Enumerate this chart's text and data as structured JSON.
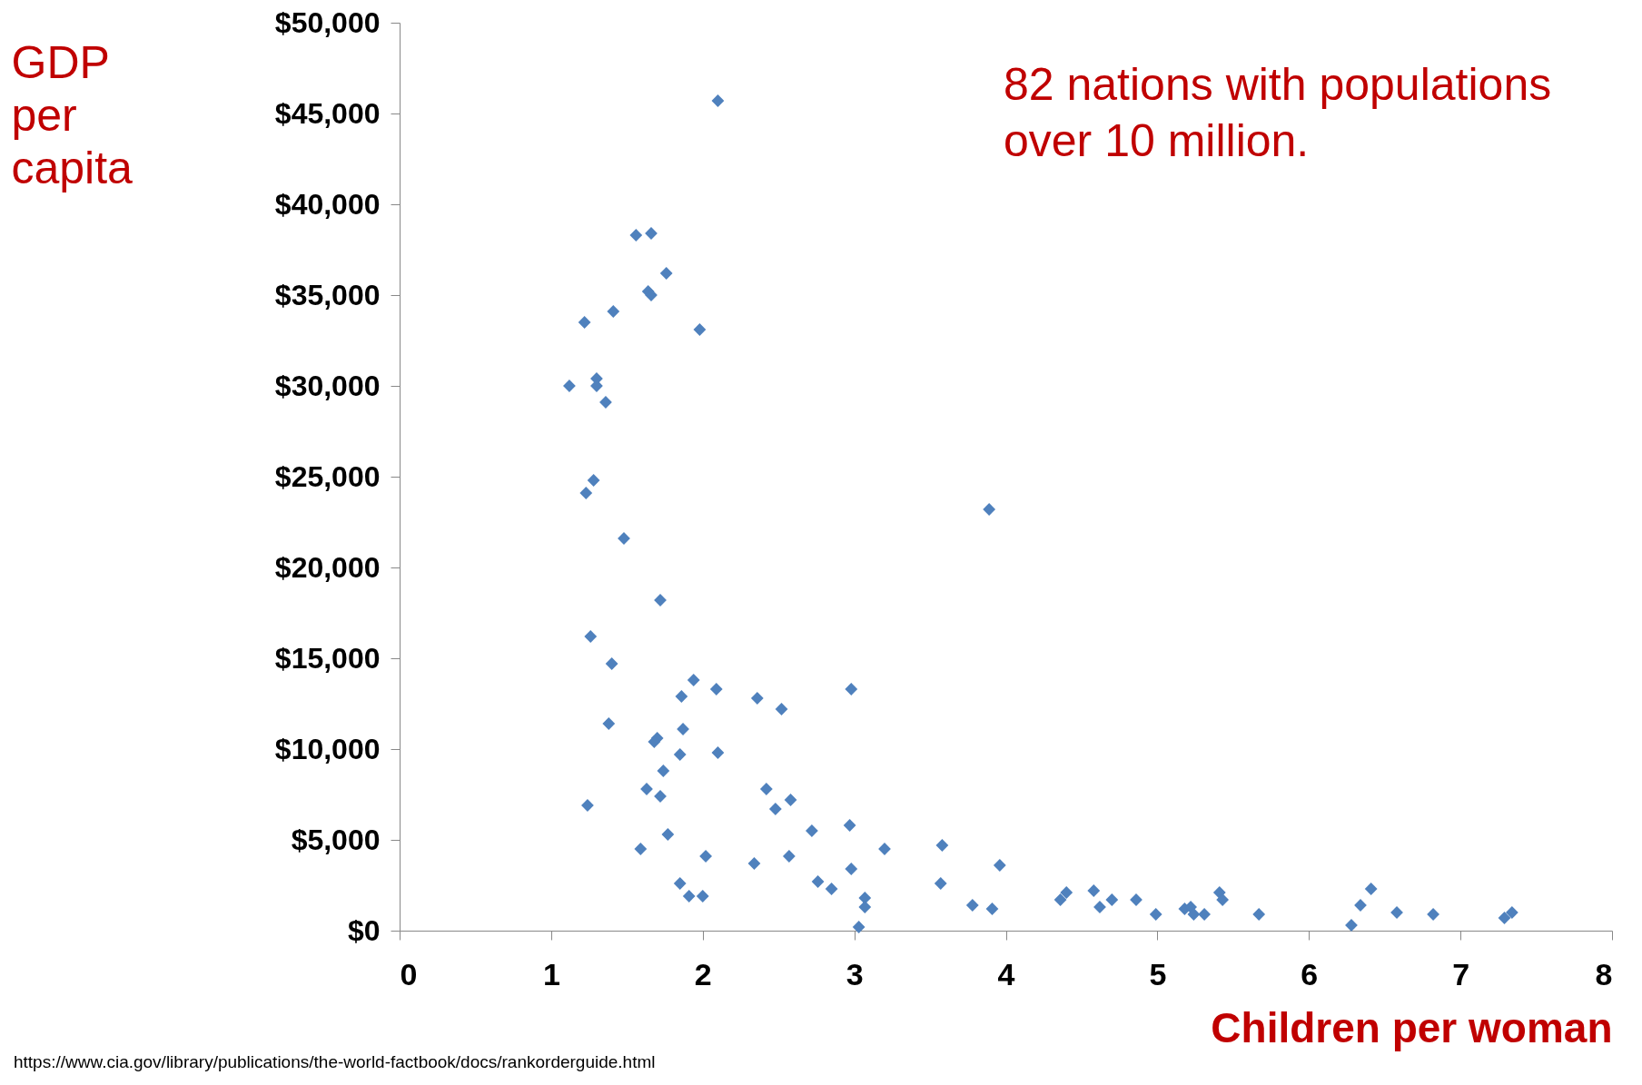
{
  "chart_data": {
    "type": "scatter",
    "xlabel": "Children per woman",
    "ylabel": "GDP per capita",
    "marker": "diamond",
    "grid": false,
    "xlim": [
      0,
      8
    ],
    "xticks": [
      0,
      1,
      2,
      3,
      4,
      5,
      6,
      7,
      8
    ],
    "ylim": [
      0,
      50000
    ],
    "yticks": [
      {
        "value": 0,
        "label": "$0"
      },
      {
        "value": 5000,
        "label": "$5,000"
      },
      {
        "value": 10000,
        "label": "$10,000"
      },
      {
        "value": 15000,
        "label": "$15,000"
      },
      {
        "value": 20000,
        "label": "$20,000"
      },
      {
        "value": 25000,
        "label": "$25,000"
      },
      {
        "value": 30000,
        "label": "$30,000"
      },
      {
        "value": 35000,
        "label": "$35,000"
      },
      {
        "value": 40000,
        "label": "$40,000"
      },
      {
        "value": 45000,
        "label": "$45,000"
      },
      {
        "value": 50000,
        "label": "$50,000"
      }
    ],
    "annotations": [
      "82 nations with populations over 10 million.",
      "https://www.cia.gov/library/publications/the-world-factbook/docs/rankorderguide.html"
    ],
    "series": [
      {
        "color": "#4f81bd",
        "x": [
          2.1,
          1.56,
          1.66,
          1.76,
          1.64,
          1.66,
          1.41,
          1.22,
          1.98,
          1.12,
          1.3,
          1.3,
          1.36,
          1.28,
          1.23,
          1.48,
          3.89,
          1.72,
          1.26,
          1.4,
          1.94,
          2.09,
          2.98,
          1.86,
          2.36,
          2.52,
          1.38,
          1.87,
          1.7,
          1.68,
          2.1,
          1.85,
          1.74,
          1.63,
          2.42,
          1.72,
          2.58,
          1.24,
          2.48,
          2.72,
          2.97,
          1.77,
          3.58,
          3.2,
          1.59,
          2.02,
          2.57,
          2.34,
          3.96,
          2.98,
          1.85,
          2.76,
          3.57,
          2.85,
          1.91,
          2.0,
          3.07,
          3.07,
          3.03,
          3.78,
          3.91,
          4.36,
          4.4,
          4.58,
          4.62,
          4.7,
          4.86,
          4.99,
          5.18,
          5.22,
          5.24,
          5.31,
          5.41,
          5.43,
          5.67,
          6.28,
          6.34,
          6.41,
          6.58,
          6.82,
          7.29,
          7.34
        ],
        "values": [
          45700,
          38300,
          38400,
          36200,
          35200,
          35000,
          34100,
          33500,
          33100,
          30000,
          30400,
          30000,
          29100,
          24800,
          24100,
          21600,
          23200,
          18200,
          16200,
          14700,
          13800,
          13300,
          13300,
          12900,
          12800,
          12200,
          11400,
          11100,
          10600,
          10400,
          9800,
          9700,
          8800,
          7800,
          7800,
          7400,
          7200,
          6900,
          6700,
          5500,
          5800,
          5300,
          4700,
          4500,
          4500,
          4100,
          4100,
          3700,
          3600,
          3400,
          2600,
          2700,
          2600,
          2300,
          1900,
          1900,
          1800,
          1300,
          200,
          1400,
          1200,
          1700,
          2100,
          2200,
          1300,
          1700,
          1700,
          900,
          1200,
          1300,
          900,
          900,
          2100,
          1700,
          900,
          300,
          1400,
          2300,
          1000,
          900,
          700,
          1000
        ]
      }
    ]
  }
}
